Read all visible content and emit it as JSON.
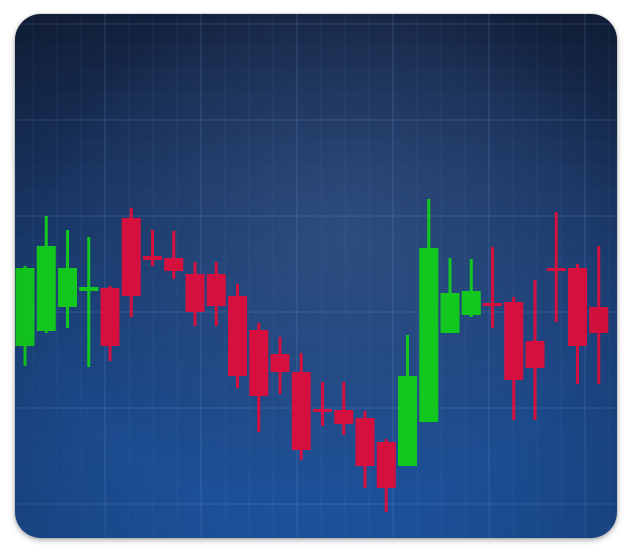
{
  "colors": {
    "background_top": "#152341",
    "background_bottom": "#1d54a0",
    "background_glow": "#3f5e90",
    "grid": "#6f9ad0",
    "bullish": "#12c81e",
    "bearish": "#d5103f"
  },
  "chart_data": {
    "type": "candlestick",
    "title": "",
    "xlabel": "",
    "ylabel": "",
    "axes_shown": false,
    "grid": true,
    "ylim": [
      0,
      524
    ],
    "candles": [
      {
        "open": 192,
        "close": 270,
        "high": 272,
        "low": 172
      },
      {
        "open": 207,
        "close": 292,
        "high": 322,
        "low": 205
      },
      {
        "open": 231,
        "close": 270,
        "high": 308,
        "low": 210
      },
      {
        "open": 247,
        "close": 251,
        "high": 301,
        "low": 171
      },
      {
        "open": 250,
        "close": 192,
        "high": 252,
        "low": 177
      },
      {
        "open": 320,
        "close": 242,
        "high": 330,
        "low": 221
      },
      {
        "open": 282,
        "close": 278,
        "high": 308,
        "low": 272
      },
      {
        "open": 280,
        "close": 267,
        "high": 307,
        "low": 259
      },
      {
        "open": 264,
        "close": 226,
        "high": 276,
        "low": 212
      },
      {
        "open": 264,
        "close": 232,
        "high": 276,
        "low": 212
      },
      {
        "open": 242,
        "close": 162,
        "high": 254,
        "low": 150
      },
      {
        "open": 208,
        "close": 142,
        "high": 215,
        "low": 106
      },
      {
        "open": 184,
        "close": 166,
        "high": 201,
        "low": 144
      },
      {
        "open": 166,
        "close": 88,
        "high": 185,
        "low": 78
      },
      {
        "open": 129,
        "close": 126,
        "high": 156,
        "low": 112
      },
      {
        "open": 128,
        "close": 114,
        "high": 156,
        "low": 103
      },
      {
        "open": 120,
        "close": 72,
        "high": 127,
        "low": 50
      },
      {
        "open": 96,
        "close": 50,
        "high": 99,
        "low": 26
      },
      {
        "open": 72,
        "close": 162,
        "high": 203,
        "low": 72
      },
      {
        "open": 116,
        "close": 290,
        "high": 339,
        "low": 116
      },
      {
        "open": 205,
        "close": 245,
        "high": 280,
        "low": 205
      },
      {
        "open": 223,
        "close": 247,
        "high": 279,
        "low": 221
      },
      {
        "open": 235,
        "close": 232,
        "high": 291,
        "low": 210
      },
      {
        "open": 236,
        "close": 158,
        "high": 241,
        "low": 118
      },
      {
        "open": 197,
        "close": 170,
        "high": 258,
        "low": 118
      },
      {
        "open": 270,
        "close": 267,
        "high": 326,
        "low": 216
      },
      {
        "open": 270,
        "close": 192,
        "high": 274,
        "low": 154
      },
      {
        "open": 231,
        "close": 205,
        "high": 292,
        "low": 154
      }
    ]
  }
}
